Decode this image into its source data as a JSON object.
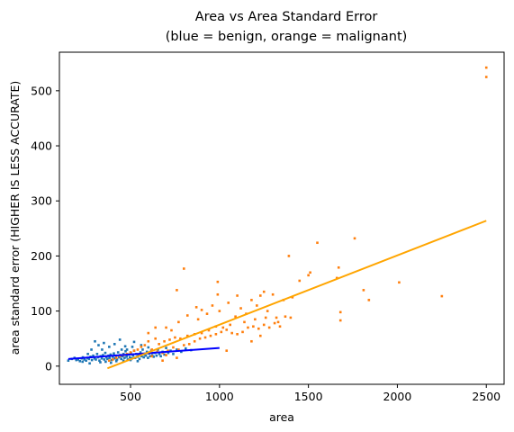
{
  "chart_data": {
    "type": "scatter",
    "title": "Area vs Area Standard Error",
    "subtitle": "(blue = benign, orange = malignant)",
    "xlabel": "area",
    "ylabel": "area standard error (HIGHER IS LESS ACCURATE)",
    "xlim": [
      100,
      2600
    ],
    "ylim": [
      -33,
      570
    ],
    "xticks": [
      500,
      1000,
      1500,
      2000,
      2500
    ],
    "yticks": [
      0,
      100,
      200,
      300,
      400,
      500
    ],
    "grid": false,
    "legend": "none",
    "series": [
      {
        "color": "#1f77b4",
        "points": [
          [
            150,
            10
          ],
          [
            170,
            13
          ],
          [
            185,
            15
          ],
          [
            195,
            11
          ],
          [
            205,
            12
          ],
          [
            215,
            9
          ],
          [
            225,
            14
          ],
          [
            232,
            16
          ],
          [
            240,
            12
          ],
          [
            250,
            10
          ],
          [
            258,
            15
          ],
          [
            266,
            13
          ],
          [
            275,
            17
          ],
          [
            283,
            11
          ],
          [
            290,
            19
          ],
          [
            298,
            14
          ],
          [
            305,
            12
          ],
          [
            312,
            22
          ],
          [
            318,
            16
          ],
          [
            325,
            10
          ],
          [
            332,
            18
          ],
          [
            338,
            14
          ],
          [
            345,
            20
          ],
          [
            352,
            12
          ],
          [
            358,
            24
          ],
          [
            364,
            16
          ],
          [
            370,
            13
          ],
          [
            376,
            19
          ],
          [
            382,
            15
          ],
          [
            388,
            21
          ],
          [
            394,
            11
          ],
          [
            400,
            17
          ],
          [
            406,
            23
          ],
          [
            412,
            14
          ],
          [
            418,
            19
          ],
          [
            424,
            12
          ],
          [
            430,
            25
          ],
          [
            436,
            16
          ],
          [
            442,
            20
          ],
          [
            448,
            13
          ],
          [
            454,
            18
          ],
          [
            460,
            22
          ],
          [
            466,
            15
          ],
          [
            472,
            27
          ],
          [
            478,
            17
          ],
          [
            484,
            12
          ],
          [
            490,
            21
          ],
          [
            496,
            16
          ],
          [
            502,
            24
          ],
          [
            508,
            14
          ],
          [
            514,
            19
          ],
          [
            520,
            28
          ],
          [
            526,
            15
          ],
          [
            532,
            22
          ],
          [
            538,
            17
          ],
          [
            544,
            20
          ],
          [
            550,
            13
          ],
          [
            556,
            25
          ],
          [
            562,
            18
          ],
          [
            568,
            30
          ],
          [
            574,
            16
          ],
          [
            580,
            21
          ],
          [
            586,
            19
          ],
          [
            592,
            26
          ],
          [
            598,
            15
          ],
          [
            604,
            23
          ],
          [
            610,
            18
          ],
          [
            616,
            28
          ],
          [
            622,
            20
          ],
          [
            630,
            17
          ],
          [
            638,
            24
          ],
          [
            646,
            19
          ],
          [
            654,
            30
          ],
          [
            662,
            22
          ],
          [
            670,
            18
          ],
          [
            680,
            26
          ],
          [
            690,
            21
          ],
          [
            700,
            33
          ],
          [
            712,
            24
          ],
          [
            725,
            28
          ],
          [
            740,
            22
          ],
          [
            760,
            30
          ],
          [
            785,
            26
          ],
          [
            810,
            32
          ],
          [
            840,
            29
          ],
          [
            300,
            45
          ],
          [
            320,
            38
          ],
          [
            350,
            42
          ],
          [
            380,
            35
          ],
          [
            410,
            40
          ],
          [
            440,
            48
          ],
          [
            470,
            36
          ],
          [
            520,
            44
          ],
          [
            560,
            38
          ],
          [
            600,
            34
          ],
          [
            280,
            30
          ],
          [
            260,
            22
          ],
          [
            340,
            30
          ],
          [
            360,
            8
          ],
          [
            420,
            9
          ],
          [
            460,
            10
          ],
          [
            500,
            11
          ],
          [
            540,
            9
          ],
          [
            390,
            6
          ],
          [
            330,
            7
          ],
          [
            270,
            5
          ],
          [
            230,
            8
          ],
          [
            480,
            30
          ],
          [
            510,
            35
          ],
          [
            450,
            30
          ]
        ],
        "fit": [
          [
            150,
            13
          ],
          [
            1000,
            33
          ]
        ],
        "fit_color": "#0000ff"
      },
      {
        "color": "#ff7f0e",
        "points": [
          [
            2500,
            542
          ],
          [
            2500,
            525
          ],
          [
            1550,
            224
          ],
          [
            1760,
            232
          ],
          [
            1390,
            200
          ],
          [
            1670,
            179
          ],
          [
            800,
            177
          ],
          [
            1500,
            165
          ],
          [
            1510,
            170
          ],
          [
            1450,
            155
          ],
          [
            1660,
            160
          ],
          [
            1810,
            138
          ],
          [
            1840,
            120
          ],
          [
            2010,
            152
          ],
          [
            2250,
            127
          ],
          [
            1680,
            98
          ],
          [
            1680,
            83
          ],
          [
            990,
            153
          ],
          [
            990,
            130
          ],
          [
            760,
            138
          ],
          [
            1360,
            120
          ],
          [
            1410,
            125
          ],
          [
            1250,
            135
          ],
          [
            1230,
            128
          ],
          [
            1300,
            130
          ],
          [
            1180,
            120
          ],
          [
            1100,
            128
          ],
          [
            1050,
            115
          ],
          [
            960,
            110
          ],
          [
            900,
            102
          ],
          [
            870,
            107
          ],
          [
            930,
            95
          ],
          [
            1000,
            100
          ],
          [
            1120,
            105
          ],
          [
            1150,
            95
          ],
          [
            1210,
            110
          ],
          [
            1270,
            100
          ],
          [
            1320,
            88
          ],
          [
            1330,
            80
          ],
          [
            1260,
            88
          ],
          [
            1200,
            85
          ],
          [
            1140,
            80
          ],
          [
            1090,
            90
          ],
          [
            1060,
            75
          ],
          [
            1020,
            70
          ],
          [
            980,
            72
          ],
          [
            940,
            65
          ],
          [
            900,
            60
          ],
          [
            860,
            58
          ],
          [
            820,
            55
          ],
          [
            780,
            50
          ],
          [
            750,
            52
          ],
          [
            720,
            48
          ],
          [
            690,
            45
          ],
          [
            660,
            40
          ],
          [
            640,
            50
          ],
          [
            600,
            45
          ],
          [
            580,
            38
          ],
          [
            560,
            35
          ],
          [
            540,
            30
          ],
          [
            520,
            28
          ],
          [
            500,
            25
          ],
          [
            480,
            22
          ],
          [
            460,
            20
          ],
          [
            440,
            18
          ],
          [
            420,
            15
          ],
          [
            400,
            12
          ],
          [
            380,
            10
          ],
          [
            620,
            30
          ],
          [
            650,
            26
          ],
          [
            680,
            24
          ],
          [
            710,
            28
          ],
          [
            740,
            34
          ],
          [
            770,
            30
          ],
          [
            800,
            38
          ],
          [
            830,
            40
          ],
          [
            860,
            45
          ],
          [
            890,
            50
          ],
          [
            920,
            52
          ],
          [
            950,
            55
          ],
          [
            980,
            58
          ],
          [
            1010,
            62
          ],
          [
            1040,
            66
          ],
          [
            1070,
            60
          ],
          [
            1100,
            58
          ],
          [
            1130,
            62
          ],
          [
            1160,
            70
          ],
          [
            1190,
            72
          ],
          [
            1220,
            68
          ],
          [
            1250,
            75
          ],
          [
            1280,
            70
          ],
          [
            1310,
            78
          ],
          [
            1340,
            72
          ],
          [
            1370,
            90
          ],
          [
            1400,
            88
          ],
          [
            1180,
            45
          ],
          [
            1230,
            55
          ],
          [
            1040,
            28
          ],
          [
            640,
            70
          ],
          [
            600,
            60
          ],
          [
            700,
            70
          ],
          [
            730,
            65
          ],
          [
            770,
            80
          ],
          [
            820,
            92
          ],
          [
            880,
            85
          ],
          [
            620,
            18
          ],
          [
            560,
            22
          ],
          [
            700,
            20
          ],
          [
            760,
            15
          ],
          [
            680,
            10
          ]
        ],
        "fit": [
          [
            370,
            -4
          ],
          [
            2500,
            264
          ]
        ],
        "fit_color": "#ffa500"
      }
    ]
  }
}
